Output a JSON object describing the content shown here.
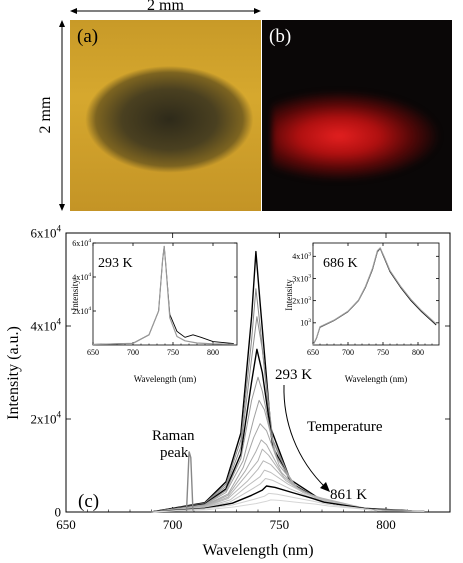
{
  "scale": {
    "horizontal_label": "2 mm",
    "vertical_label": "2 mm"
  },
  "panels": {
    "a": "(a)",
    "b": "(b)",
    "c": "(c)"
  },
  "chart_data": [
    {
      "type": "line",
      "panel": "(c)",
      "xlabel": "Wavelength (nm)",
      "ylabel": "Intensity (a.u.)",
      "xlim": [
        650,
        830
      ],
      "ylim": [
        0,
        60000
      ],
      "x_ticks": [
        "650",
        "700",
        "750",
        "800"
      ],
      "y_ticks": [
        "0",
        "2x10",
        "4x10",
        "6x10"
      ],
      "y_tick_exp": "4",
      "series": [
        {
          "values": [
            [
              690,
              0
            ],
            [
              715,
              2000
            ],
            [
              725,
              6500
            ],
            [
              732,
              17000
            ],
            [
              737,
              42000
            ],
            [
              739,
              56000
            ],
            [
              741,
              45000
            ],
            [
              746,
              18000
            ],
            [
              755,
              7000
            ],
            [
              770,
              2500
            ],
            [
              790,
              800
            ],
            [
              810,
              300
            ]
          ]
        },
        {
          "values": [
            [
              690,
              0
            ],
            [
              715,
              1900
            ],
            [
              725,
              6000
            ],
            [
              732,
              15500
            ],
            [
              737,
              37000
            ],
            [
              739,
              48000
            ],
            [
              741,
              40000
            ],
            [
              746,
              16500
            ],
            [
              755,
              6500
            ],
            [
              770,
              2300
            ],
            [
              790,
              750
            ],
            [
              810,
              280
            ]
          ]
        },
        {
          "values": [
            [
              690,
              0
            ],
            [
              715,
              1800
            ],
            [
              725,
              5500
            ],
            [
              732,
              14000
            ],
            [
              737,
              33000
            ],
            [
              739.5,
              42000
            ],
            [
              742,
              35000
            ],
            [
              747,
              15500
            ],
            [
              756,
              6200
            ],
            [
              770,
              2200
            ],
            [
              790,
              700
            ],
            [
              810,
              260
            ]
          ]
        },
        {
          "values": [
            [
              690,
              0
            ],
            [
              715,
              1700
            ],
            [
              725,
              5000
            ],
            [
              732,
              12500
            ],
            [
              737,
              28000
            ],
            [
              739.5,
              35000
            ],
            [
              742,
              30000
            ],
            [
              747,
              14000
            ],
            [
              756,
              6000
            ],
            [
              770,
              2300
            ],
            [
              790,
              650
            ],
            [
              812,
              240
            ]
          ]
        },
        {
          "values": [
            [
              690,
              0
            ],
            [
              715,
              1600
            ],
            [
              725,
              4600
            ],
            [
              732,
              11500
            ],
            [
              737,
              24000
            ],
            [
              740,
              29000
            ],
            [
              742,
              26000
            ],
            [
              748,
              12500
            ],
            [
              757,
              5600
            ],
            [
              770,
              2300
            ],
            [
              790,
              620
            ],
            [
              812,
              230
            ]
          ]
        },
        {
          "values": [
            [
              690,
              0
            ],
            [
              715,
              1500
            ],
            [
              725,
              4200
            ],
            [
              733,
              11000
            ],
            [
              738,
              20000
            ],
            [
              740.5,
              24000
            ],
            [
              743,
              22000
            ],
            [
              749,
              11500
            ],
            [
              758,
              5400
            ],
            [
              770,
              2300
            ],
            [
              792,
              600
            ],
            [
              812,
              220
            ]
          ]
        },
        {
          "values": [
            [
              690,
              0
            ],
            [
              715,
              1400
            ],
            [
              726,
              3900
            ],
            [
              733,
              9500
            ],
            [
              738,
              16000
            ],
            [
              741,
              19000
            ],
            [
              744,
              17500
            ],
            [
              750,
              10000
            ],
            [
              759,
              4900
            ],
            [
              770,
              2800
            ],
            [
              792,
              560
            ],
            [
              814,
              200
            ]
          ]
        },
        {
          "values": [
            [
              690,
              0
            ],
            [
              715,
              1300
            ],
            [
              726,
              3600
            ],
            [
              734,
              8800
            ],
            [
              739,
              13000
            ],
            [
              741.5,
              15500
            ],
            [
              744,
              14500
            ],
            [
              751,
              8500
            ],
            [
              760,
              4500
            ],
            [
              770,
              2600
            ],
            [
              792,
              520
            ],
            [
              815,
              190
            ]
          ]
        },
        {
          "values": [
            [
              690,
              0
            ],
            [
              715,
              1200
            ],
            [
              726,
              3200
            ],
            [
              734,
              7600
            ],
            [
              740,
              11000
            ],
            [
              742,
              13500
            ],
            [
              745,
              12200
            ],
            [
              752,
              7600
            ],
            [
              761,
              4200
            ],
            [
              770,
              3000
            ],
            [
              793,
              500
            ],
            [
              815,
              180
            ]
          ]
        },
        {
          "values": [
            [
              690,
              0
            ],
            [
              715,
              1100
            ],
            [
              726,
              2900
            ],
            [
              735,
              6600
            ],
            [
              740,
              9200
            ],
            [
              742.5,
              11000
            ],
            [
              746,
              10200
            ],
            [
              753,
              6800
            ],
            [
              762,
              4000
            ],
            [
              770,
              2700
            ],
            [
              794,
              460
            ],
            [
              816,
              170
            ]
          ]
        },
        {
          "values": [
            [
              690,
              0
            ],
            [
              715,
              1000
            ],
            [
              727,
              2600
            ],
            [
              735,
              5600
            ],
            [
              741,
              7600
            ],
            [
              743,
              9000
            ],
            [
              746,
              8500
            ],
            [
              754,
              6000
            ],
            [
              763,
              3800
            ],
            [
              770,
              2500
            ],
            [
              795,
              420
            ],
            [
              816,
              160
            ]
          ]
        },
        {
          "values": [
            [
              690,
              0
            ],
            [
              715,
              900
            ],
            [
              727,
              2200
            ],
            [
              736,
              4600
            ],
            [
              741,
              6000
            ],
            [
              743.5,
              7200
            ],
            [
              747,
              6800
            ],
            [
              755,
              5000
            ],
            [
              764,
              3300
            ],
            [
              770,
              2300
            ],
            [
              795,
              380
            ],
            [
              817,
              150
            ]
          ]
        },
        {
          "values": [
            [
              690,
              0
            ],
            [
              715,
              800
            ],
            [
              728,
              1900
            ],
            [
              737,
              3600
            ],
            [
              742,
              4700
            ],
            [
              744,
              5600
            ],
            [
              748,
              5300
            ],
            [
              756,
              4200
            ],
            [
              765,
              3000
            ],
            [
              771,
              2100
            ],
            [
              796,
              340
            ],
            [
              818,
              140
            ]
          ]
        },
        {
          "values": [
            [
              690,
              0
            ],
            [
              715,
              700
            ],
            [
              728,
              1500
            ],
            [
              738,
              2700
            ],
            [
              743,
              3400
            ],
            [
              745,
              4000
            ],
            [
              749,
              3800
            ],
            [
              757,
              3100
            ],
            [
              766,
              2300
            ],
            [
              772,
              1700
            ],
            [
              797,
              300
            ],
            [
              818,
              130
            ]
          ]
        },
        {
          "values": [
            [
              690,
              0
            ],
            [
              716,
              500
            ],
            [
              729,
              1100
            ],
            [
              739,
              1800
            ],
            [
              744,
              2300
            ],
            [
              746,
              2600
            ],
            [
              750,
              2500
            ],
            [
              758,
              2100
            ],
            [
              767,
              1700
            ],
            [
              773,
              1300
            ],
            [
              798,
              260
            ],
            [
              818,
              120
            ]
          ]
        }
      ],
      "raman_peak": {
        "x": 708,
        "y": 13000
      },
      "annotations": {
        "temp_start": "293 K",
        "temp_end": "861 K",
        "direction": "Temperature",
        "raman_line1": "Raman",
        "raman_line2": "peak"
      }
    },
    {
      "type": "line",
      "label": "293 K",
      "xlabel": "Wavelength (nm)",
      "ylabel": "Intensity",
      "xlim": [
        650,
        830
      ],
      "ylim": [
        0,
        60000
      ],
      "x_ticks": [
        "650",
        "700",
        "750",
        "800"
      ],
      "y_ticks": [
        "2x10",
        "4x10",
        "6x10"
      ],
      "y_tick_exp": "4",
      "series": [
        {
          "values": [
            [
              650,
              300
            ],
            [
              700,
              1000
            ],
            [
              720,
              6000
            ],
            [
              732,
              20000
            ],
            [
              737,
              50000
            ],
            [
              739,
              58000
            ],
            [
              741,
              47000
            ],
            [
              746,
              18000
            ],
            [
              755,
              8000
            ],
            [
              765,
              4500
            ],
            [
              775,
              6000
            ],
            [
              785,
              4500
            ],
            [
              800,
              2000
            ],
            [
              826,
              800
            ]
          ]
        },
        {
          "values": [
            [
              650,
              300
            ],
            [
              700,
              1000
            ],
            [
              720,
              6000
            ],
            [
              732,
              20000
            ],
            [
              737,
              50000
            ],
            [
              739,
              58000
            ],
            [
              741,
              47000
            ],
            [
              746,
              16000
            ],
            [
              755,
              5000
            ],
            [
              765,
              2500
            ],
            [
              780,
              1200
            ],
            [
              800,
              700
            ],
            [
              826,
              400
            ]
          ]
        }
      ]
    },
    {
      "type": "line",
      "label": "686 K",
      "xlabel": "Wavelength (nm)",
      "ylabel": "Intensity",
      "xlim": [
        650,
        830
      ],
      "ylim": [
        0,
        4600
      ],
      "x_ticks": [
        "650",
        "700",
        "750",
        "800"
      ],
      "y_ticks": [
        "10",
        "2x10",
        "3x10",
        "4x10"
      ],
      "y_tick_exp": "3",
      "series": [
        {
          "values": [
            [
              650,
              0
            ],
            [
              655,
              300
            ],
            [
              660,
              800
            ],
            [
              680,
              1100
            ],
            [
              700,
              1500
            ],
            [
              715,
              2000
            ],
            [
              725,
              2600
            ],
            [
              735,
              3400
            ],
            [
              742,
              4200
            ],
            [
              746,
              4350
            ],
            [
              752,
              3900
            ],
            [
              760,
              3300
            ],
            [
              775,
              2600
            ],
            [
              790,
              2000
            ],
            [
              805,
              1500
            ],
            [
              826,
              900
            ]
          ]
        },
        {
          "values": [
            [
              650,
              0
            ],
            [
              655,
              320
            ],
            [
              660,
              820
            ],
            [
              680,
              1120
            ],
            [
              700,
              1520
            ],
            [
              715,
              2020
            ],
            [
              725,
              2640
            ],
            [
              735,
              3450
            ],
            [
              742,
              4250
            ],
            [
              746,
              4380
            ],
            [
              752,
              3950
            ],
            [
              760,
              3350
            ],
            [
              775,
              2650
            ],
            [
              790,
              2050
            ],
            [
              805,
              1550
            ],
            [
              826,
              950
            ]
          ]
        }
      ]
    }
  ]
}
